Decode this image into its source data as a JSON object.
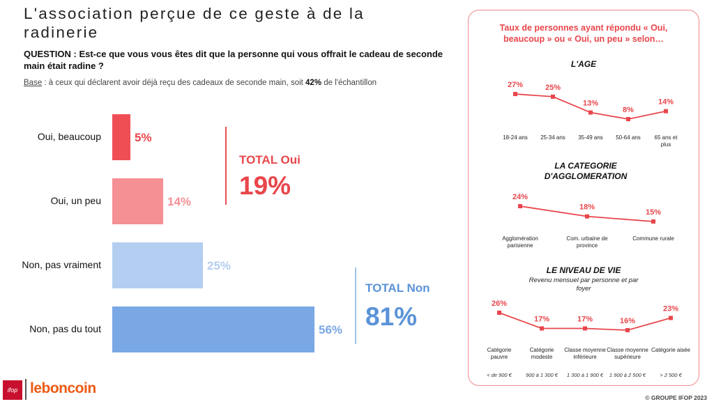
{
  "title": "L'association perçue de ce geste à de la radinerie",
  "question": "QUESTION : Est-ce que vous vous êtes dit que la personne qui vous offrait le cadeau de seconde main était radine ?",
  "base": {
    "label": "Base",
    "text": " : à ceux qui déclarent avoir déjà reçu des cadeaux de seconde main, soit ",
    "pct": "42%",
    "suffix": " de l'échantillon"
  },
  "colors": {
    "red_strong": "#f04e55",
    "red_light": "#f59095",
    "blue_light": "#b3cef1",
    "blue_strong": "#79a8e5",
    "accent_red": "#e8464b",
    "accent_blue": "#5b93d8"
  },
  "chart_data": [
    {
      "type": "bar",
      "orientation": "horizontal",
      "categories": [
        "Oui, beaucoup",
        "Oui, un peu",
        "Non, pas vraiment",
        "Non, pas du tout"
      ],
      "values": [
        5,
        14,
        25,
        56
      ],
      "value_labels": [
        "5%",
        "14%",
        "25%",
        "56%"
      ],
      "totals": [
        {
          "label": "TOTAL Oui",
          "value": "19%"
        },
        {
          "label": "TOTAL Non",
          "value": "81%"
        }
      ]
    },
    {
      "type": "line",
      "title": "L'AGE",
      "categories": [
        "18-24 ans",
        "25-34 ans",
        "35-49 ans",
        "50-64 ans",
        "65 ans et plus"
      ],
      "values": [
        27,
        25,
        13,
        8,
        14
      ],
      "value_labels": [
        "27%",
        "25%",
        "13%",
        "8%",
        "14%"
      ]
    },
    {
      "type": "line",
      "title": "LA CATEGORIE D'AGGLOMERATION",
      "categories": [
        "Agglomération parisienne",
        "Com. urbaine de province",
        "Commune rurale"
      ],
      "values": [
        24,
        18,
        15
      ],
      "value_labels": [
        "24%",
        "18%",
        "15%"
      ]
    },
    {
      "type": "line",
      "title": "LE NIVEAU DE VIE",
      "subtitle": "Revenu mensuel par personne et par foyer",
      "categories": [
        "Catégorie pauvre",
        "Catégorie modeste",
        "Classe moyenne inférieure",
        "Classe moyenne supérieure",
        "Catégorie aisée"
      ],
      "values": [
        26,
        17,
        17,
        16,
        23
      ],
      "value_labels": [
        "26%",
        "17%",
        "17%",
        "16%",
        "23%"
      ],
      "ranges": [
        "< de 900 €",
        "900 à 1 300 €",
        "1 300 à 1 900 €",
        "1 900 à 2 500 €",
        "> 2 500 €"
      ]
    }
  ],
  "panel": {
    "heading": "Taux de personnes ayant répondu « Oui, beaucoup » ou « Oui, un peu » selon…"
  },
  "footer": {
    "logo_ifop": "ifop",
    "logo_leboncoin": "leboncoin",
    "copyright": "© GROUPE IFOP 2023"
  }
}
